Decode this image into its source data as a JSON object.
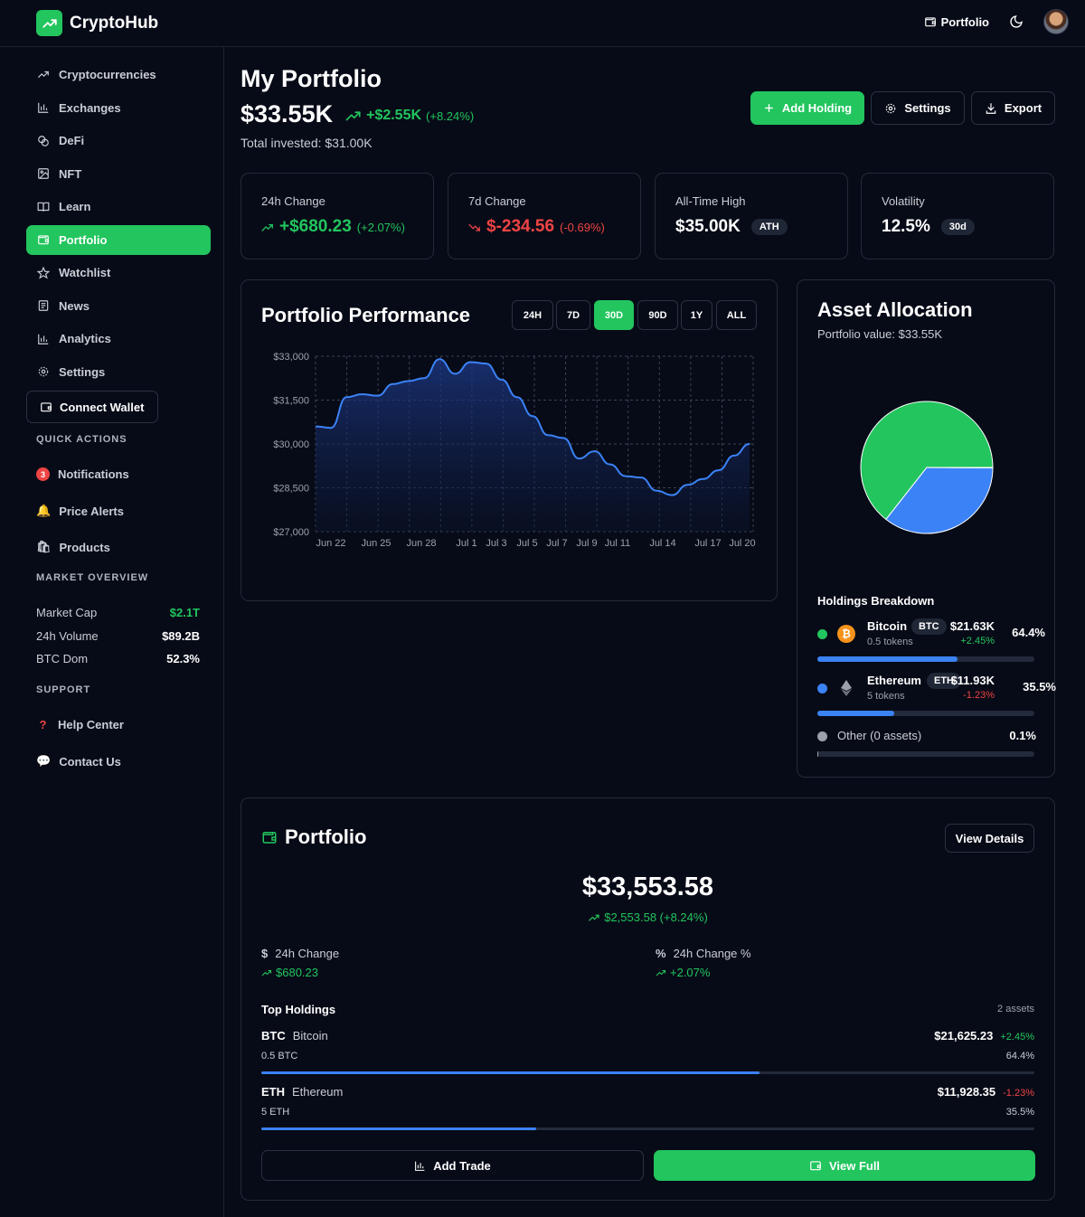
{
  "app": {
    "name": "CryptoHub"
  },
  "header": {
    "portfolio_link": "Portfolio"
  },
  "sidebar": {
    "items": [
      {
        "label": "Cryptocurrencies",
        "icon": "trend-icon"
      },
      {
        "label": "Exchanges",
        "icon": "bar-chart-icon"
      },
      {
        "label": "DeFi",
        "icon": "coins-icon"
      },
      {
        "label": "NFT",
        "icon": "image-icon"
      },
      {
        "label": "Learn",
        "icon": "book-icon"
      },
      {
        "label": "Portfolio",
        "icon": "wallet-icon",
        "active": true
      },
      {
        "label": "Watchlist",
        "icon": "star-icon"
      },
      {
        "label": "News",
        "icon": "newspaper-icon"
      },
      {
        "label": "Analytics",
        "icon": "bar-chart-icon"
      },
      {
        "label": "Settings",
        "icon": "gear-icon"
      }
    ],
    "connect_wallet": "Connect Wallet",
    "quick_actions": {
      "title": "QUICK ACTIONS",
      "notifications_count": "3",
      "notifications": "Notifications",
      "price_alerts": "Price Alerts",
      "products": "Products"
    },
    "market_overview": {
      "title": "MARKET OVERVIEW",
      "rows": [
        {
          "label": "Market Cap",
          "value": "$2.1T",
          "color": "#22c55e"
        },
        {
          "label": "24h Volume",
          "value": "$89.2B",
          "color": "#ffffff"
        },
        {
          "label": "BTC Dom",
          "value": "52.3%",
          "color": "#ffffff"
        }
      ]
    },
    "support": {
      "title": "SUPPORT",
      "help": "Help Center",
      "contact": "Contact Us"
    }
  },
  "main": {
    "title": "My Portfolio",
    "total": "$33.55K",
    "total_change": "+$2.55K",
    "total_change_pct": "(+8.24%)",
    "invested": "Total invested: $31.00K",
    "buttons": {
      "add": "Add Holding",
      "settings": "Settings",
      "export": "Export"
    },
    "stats": [
      {
        "label": "24h Change",
        "value": "+$680.23",
        "pct": "(+2.07%)",
        "trend": "up"
      },
      {
        "label": "7d Change",
        "value": "$-234.56",
        "pct": "(-0.69%)",
        "trend": "down"
      },
      {
        "label": "All-Time High",
        "value": "$35.00K",
        "pill": "ATH"
      },
      {
        "label": "Volatility",
        "value": "12.5%",
        "pill": "30d"
      }
    ]
  },
  "performance": {
    "title": "Portfolio Performance",
    "ranges": [
      "24H",
      "7D",
      "30D",
      "90D",
      "1Y",
      "ALL"
    ],
    "active_range": "30D"
  },
  "chart_data": {
    "type": "area",
    "title": "Portfolio Performance",
    "x_ticks": [
      "Jun 22",
      "Jun 25",
      "Jun 28",
      "Jul 1",
      "Jul 3",
      "Jul 5",
      "Jul 7",
      "Jul 9",
      "Jul 11",
      "Jul 14",
      "Jul 17",
      "Jul 20"
    ],
    "y_ticks": [
      "$33,000",
      "$31,500",
      "$30,000",
      "$28,500",
      "$27,000"
    ],
    "ylim": [
      27000,
      33000
    ],
    "series": [
      {
        "values": [
          30600,
          30550,
          31600,
          31700,
          31650,
          32050,
          32150,
          32250,
          32900,
          32400,
          32800,
          32750,
          32200,
          31600,
          30950,
          30300,
          30200,
          29500,
          29750,
          29300,
          28900,
          28850,
          28400,
          28250,
          28600,
          28800,
          29100,
          29600,
          30000
        ],
        "color": "#3b82f6"
      }
    ],
    "grid": true
  },
  "allocation": {
    "title": "Asset Allocation",
    "subtitle": "Portfolio value: $33.55K",
    "slices": [
      {
        "name": "Bitcoin",
        "value": 64.4,
        "color": "#22c55e"
      },
      {
        "name": "Ethereum",
        "value": 35.5,
        "color": "#3b82f6"
      },
      {
        "name": "Other",
        "value": 0.1,
        "color": "#9aa1ad"
      }
    ],
    "breakdown_title": "Holdings Breakdown",
    "holdings": [
      {
        "name": "Bitcoin",
        "symbol": "BTC",
        "tokens": "0.5 tokens",
        "value": "$21.63K",
        "change": "+2.45%",
        "pct": "64.4%",
        "share": 0.644,
        "dot": "#22c55e",
        "trend": "up"
      },
      {
        "name": "Ethereum",
        "symbol": "ETH",
        "tokens": "5 tokens",
        "value": "$11.93K",
        "change": "-1.23%",
        "pct": "35.5%",
        "share": 0.355,
        "dot": "#3b82f6",
        "trend": "down"
      }
    ],
    "other": {
      "label": "Other (0 assets)",
      "pct": "0.1%",
      "share": 0.001
    }
  },
  "portfolio_card": {
    "title": "Portfolio",
    "view_details": "View Details",
    "value": "$33,553.58",
    "change": "$2,553.58 (+8.24%)",
    "change_24h_label": "24h Change",
    "change_24h_value": "$680.23",
    "change_24h_pct_label": "24h Change %",
    "change_24h_pct_value": "+2.07%",
    "top_holdings_title": "Top Holdings",
    "assets_count": "2 assets",
    "holdings": [
      {
        "symbol": "BTC",
        "name": "Bitcoin",
        "amount": "0.5 BTC",
        "value": "$21,625.23",
        "change": "+2.45%",
        "pct": "64.4%",
        "share": 0.644,
        "trend": "up"
      },
      {
        "symbol": "ETH",
        "name": "Ethereum",
        "amount": "5 ETH",
        "value": "$11,928.35",
        "change": "-1.23%",
        "pct": "35.5%",
        "share": 0.355,
        "trend": "down"
      }
    ],
    "add_trade": "Add Trade",
    "view_full": "View Full"
  }
}
